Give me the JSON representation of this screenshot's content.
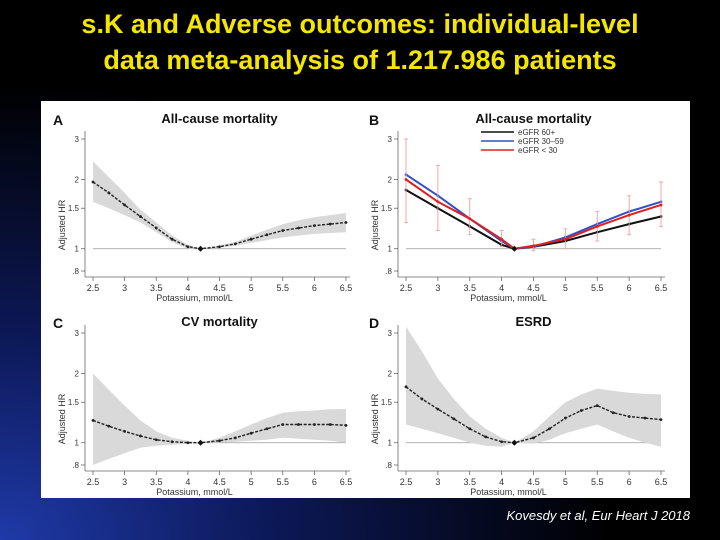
{
  "slide": {
    "title_line1": "s.K and Adverse outcomes: individual-level",
    "title_line2": "data meta-analysis of 1.217.986 patients",
    "citation": "Kovesdy et al, Eur Heart J 2018"
  },
  "colors": {
    "title": "#f5e600",
    "curve": "#222222",
    "ci_band": "#d9d9d9",
    "egfr60": "#111111",
    "egfr30_59": "#3050c8",
    "egfr_lt30": "#e02020",
    "egfr_lt30_ci": "#f0a0a0"
  },
  "chart_data": [
    {
      "panel": "A",
      "title": "All-cause mortality",
      "type": "line",
      "xlabel": "Potassium, mmol/L",
      "ylabel": "Adjusted HR",
      "xlim": [
        2.5,
        6.5
      ],
      "ylim": [
        0.8,
        3
      ],
      "xticks": [
        "2.5",
        "3",
        "3.5",
        "4",
        "4.5",
        "5",
        "5.5",
        "6",
        "6.5"
      ],
      "yticks": [
        ".8",
        "1",
        "1.5",
        "2",
        "3"
      ],
      "reference_x": 4.2,
      "series": [
        {
          "name": "All-cause mortality",
          "x": [
            2.5,
            2.75,
            3.0,
            3.25,
            3.5,
            3.75,
            4.0,
            4.2,
            4.5,
            4.75,
            5.0,
            5.25,
            5.5,
            5.75,
            6.0,
            6.25,
            6.5
          ],
          "y": [
            1.95,
            1.75,
            1.55,
            1.38,
            1.23,
            1.1,
            1.02,
            1.0,
            1.02,
            1.05,
            1.1,
            1.15,
            1.2,
            1.23,
            1.26,
            1.28,
            1.3
          ],
          "lower": [
            1.6,
            1.5,
            1.4,
            1.3,
            1.18,
            1.07,
            1.0,
            1.0,
            1.01,
            1.03,
            1.06,
            1.09,
            1.12,
            1.14,
            1.16,
            1.17,
            1.18
          ],
          "upper": [
            2.4,
            2.05,
            1.75,
            1.48,
            1.3,
            1.14,
            1.04,
            1.0,
            1.03,
            1.07,
            1.14,
            1.21,
            1.28,
            1.33,
            1.37,
            1.4,
            1.43
          ]
        }
      ]
    },
    {
      "panel": "B",
      "title": "All-cause mortality",
      "type": "line",
      "xlabel": "Potassium, mmol/L",
      "ylabel": "Adjusted HR",
      "xlim": [
        2.5,
        6.5
      ],
      "ylim": [
        0.8,
        3
      ],
      "xticks": [
        "2.5",
        "3",
        "3.5",
        "4",
        "4.5",
        "5",
        "5.5",
        "6",
        "6.5"
      ],
      "yticks": [
        ".8",
        "1",
        "1.5",
        "2",
        "3"
      ],
      "reference_x": 4.2,
      "legend": [
        "eGFR 60+",
        "eGFR 30–59",
        "eGFR < 30"
      ],
      "series": [
        {
          "name": "eGFR 60+",
          "color_key": "egfr60",
          "x": [
            2.5,
            3.0,
            3.5,
            4.0,
            4.2,
            4.5,
            5.0,
            5.5,
            6.0,
            6.5
          ],
          "y": [
            1.8,
            1.5,
            1.25,
            1.04,
            1.0,
            1.02,
            1.08,
            1.18,
            1.28,
            1.38
          ]
        },
        {
          "name": "eGFR 30–59",
          "color_key": "egfr30_59",
          "x": [
            2.5,
            3.0,
            3.5,
            4.0,
            4.2,
            4.5,
            5.0,
            5.5,
            6.0,
            6.5
          ],
          "y": [
            2.1,
            1.7,
            1.35,
            1.08,
            1.0,
            1.02,
            1.12,
            1.28,
            1.45,
            1.6
          ]
        },
        {
          "name": "eGFR < 30",
          "color_key": "egfr_lt30",
          "x": [
            2.5,
            3.0,
            3.5,
            4.0,
            4.2,
            4.5,
            5.0,
            5.5,
            6.0,
            6.5
          ],
          "y": [
            2.0,
            1.6,
            1.35,
            1.1,
            1.0,
            1.03,
            1.1,
            1.25,
            1.4,
            1.55
          ],
          "lower": [
            1.3,
            1.2,
            1.15,
            1.02,
            1.0,
            0.98,
            1.0,
            1.08,
            1.15,
            1.25
          ],
          "upper": [
            3.0,
            2.3,
            1.65,
            1.2,
            1.0,
            1.1,
            1.22,
            1.45,
            1.7,
            1.95
          ]
        }
      ]
    },
    {
      "panel": "C",
      "title": "CV mortality",
      "type": "line",
      "xlabel": "Potassium, mmol/L",
      "ylabel": "Adjusted HR",
      "xlim": [
        2.5,
        6.5
      ],
      "ylim": [
        0.8,
        3
      ],
      "xticks": [
        "2.5",
        "3",
        "3.5",
        "4",
        "4.5",
        "5",
        "5.5",
        "6",
        "6.5"
      ],
      "yticks": [
        ".8",
        "1",
        "1.5",
        "2",
        "3"
      ],
      "reference_x": 4.2,
      "series": [
        {
          "name": "CV mortality",
          "x": [
            2.5,
            2.75,
            3.0,
            3.25,
            3.5,
            3.75,
            4.0,
            4.2,
            4.5,
            4.75,
            5.0,
            5.25,
            5.5,
            5.75,
            6.0,
            6.25,
            6.5
          ],
          "y": [
            1.25,
            1.18,
            1.12,
            1.07,
            1.03,
            1.01,
            1.0,
            1.0,
            1.02,
            1.05,
            1.1,
            1.15,
            1.2,
            1.2,
            1.2,
            1.2,
            1.19
          ],
          "lower": [
            0.8,
            0.85,
            0.9,
            0.95,
            0.97,
            0.98,
            0.99,
            1.0,
            1.0,
            1.01,
            1.02,
            1.03,
            1.05,
            1.04,
            1.03,
            1.02,
            1.0
          ],
          "upper": [
            2.0,
            1.7,
            1.45,
            1.25,
            1.12,
            1.05,
            1.02,
            1.0,
            1.05,
            1.12,
            1.2,
            1.28,
            1.35,
            1.37,
            1.38,
            1.4,
            1.4
          ]
        }
      ]
    },
    {
      "panel": "D",
      "title": "ESRD",
      "type": "line",
      "xlabel": "Potassium, mmol/L",
      "ylabel": "Adjusted HR",
      "xlim": [
        2.5,
        6.5
      ],
      "ylim": [
        0.8,
        3
      ],
      "xticks": [
        "2.5",
        "3",
        "3.5",
        "4",
        "4.5",
        "5",
        "5.5",
        "6",
        "6.5"
      ],
      "yticks": [
        ".8",
        "1",
        "1.5",
        "2",
        "3"
      ],
      "reference_x": 4.2,
      "series": [
        {
          "name": "ESRD",
          "x": [
            2.5,
            2.75,
            3.0,
            3.25,
            3.5,
            3.75,
            4.0,
            4.2,
            4.5,
            4.75,
            5.0,
            5.25,
            5.5,
            5.75,
            6.0,
            6.25,
            6.5
          ],
          "y": [
            1.75,
            1.55,
            1.4,
            1.27,
            1.15,
            1.06,
            1.01,
            1.0,
            1.05,
            1.15,
            1.28,
            1.38,
            1.45,
            1.35,
            1.3,
            1.28,
            1.26
          ],
          "lower": [
            1.2,
            1.15,
            1.1,
            1.05,
            1.0,
            0.97,
            0.96,
            1.0,
            0.99,
            1.03,
            1.1,
            1.15,
            1.2,
            1.12,
            1.05,
            1.0,
            0.96
          ],
          "upper": [
            3.2,
            2.5,
            1.9,
            1.55,
            1.3,
            1.15,
            1.05,
            1.0,
            1.12,
            1.3,
            1.5,
            1.62,
            1.72,
            1.68,
            1.65,
            1.63,
            1.62
          ]
        }
      ]
    }
  ]
}
